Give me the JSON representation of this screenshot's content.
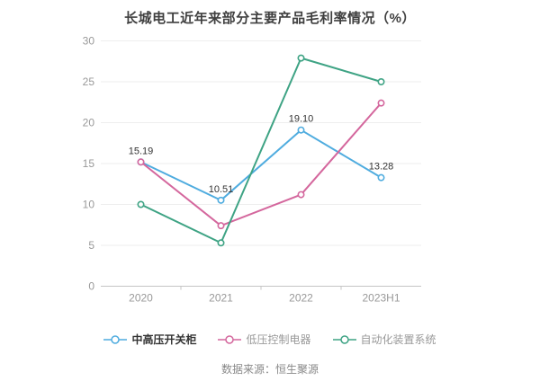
{
  "page": {
    "background": "#ffffff"
  },
  "chart_data": {
    "type": "line",
    "title": "长城电工近年来部分主要产品毛利率情况（%）",
    "categories": [
      "2020",
      "2021",
      "2022",
      "2023H1"
    ],
    "series": [
      {
        "name": "中高压开关柜",
        "color": "#4FACDF",
        "values": [
          15.19,
          10.51,
          19.1,
          13.28
        ],
        "labels": [
          "15.19",
          "10.51",
          "19.10",
          "13.28"
        ],
        "show_labels": true
      },
      {
        "name": "低压控制电器",
        "color": "#D4679D",
        "values": [
          15.19,
          7.4,
          11.2,
          22.4
        ],
        "labels": [],
        "show_labels": false
      },
      {
        "name": "自动化装置系统",
        "color": "#3EA384",
        "values": [
          10.0,
          5.3,
          27.9,
          25.0
        ],
        "labels": [],
        "show_labels": false
      }
    ],
    "ylim": [
      0,
      30
    ],
    "yticks": [
      0,
      5,
      10,
      15,
      20,
      25,
      30
    ],
    "grid": true,
    "legend_position": "bottom",
    "colors": {
      "grid_line": "#eeeeee",
      "axis_line": "#c4c4c4",
      "axis_label": "#999999",
      "data_label": "#333333",
      "marker_fill": "#ffffff"
    }
  },
  "footer": {
    "source": "数据来源：恒生聚源"
  }
}
